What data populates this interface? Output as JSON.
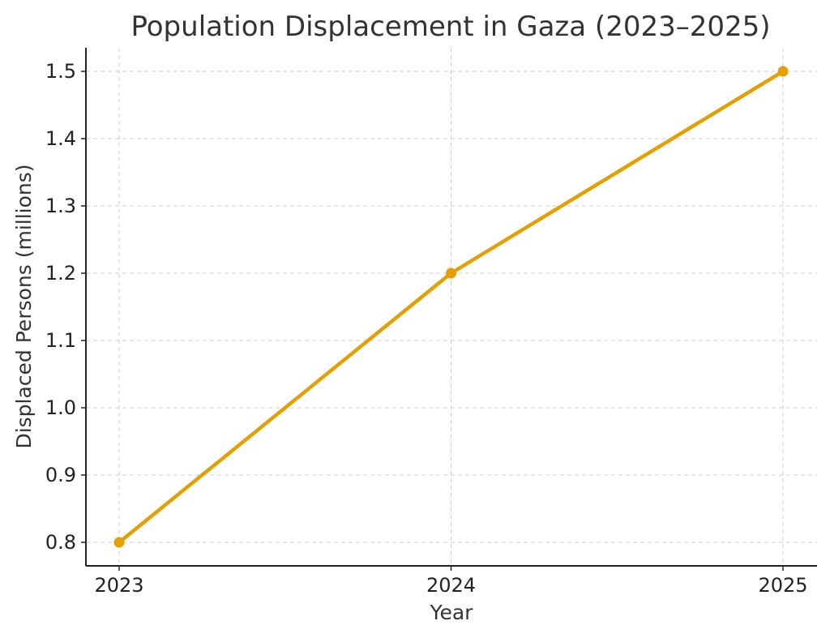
{
  "chart_data": {
    "type": "line",
    "title": "Population Displacement in Gaza (2023–2025)",
    "xlabel": "Year",
    "ylabel": "Displaced Persons (millions)",
    "categories": [
      "2023",
      "2024",
      "2025"
    ],
    "series": [
      {
        "values": [
          0.8,
          1.2,
          1.5
        ],
        "color": "#e69f00",
        "marker": "circle"
      }
    ],
    "y_ticks": [
      "0.8",
      "0.9",
      "1.0",
      "1.1",
      "1.2",
      "1.3",
      "1.4",
      "1.5"
    ],
    "ylim": [
      0.765,
      1.535
    ],
    "grid": true,
    "legend": "none"
  }
}
